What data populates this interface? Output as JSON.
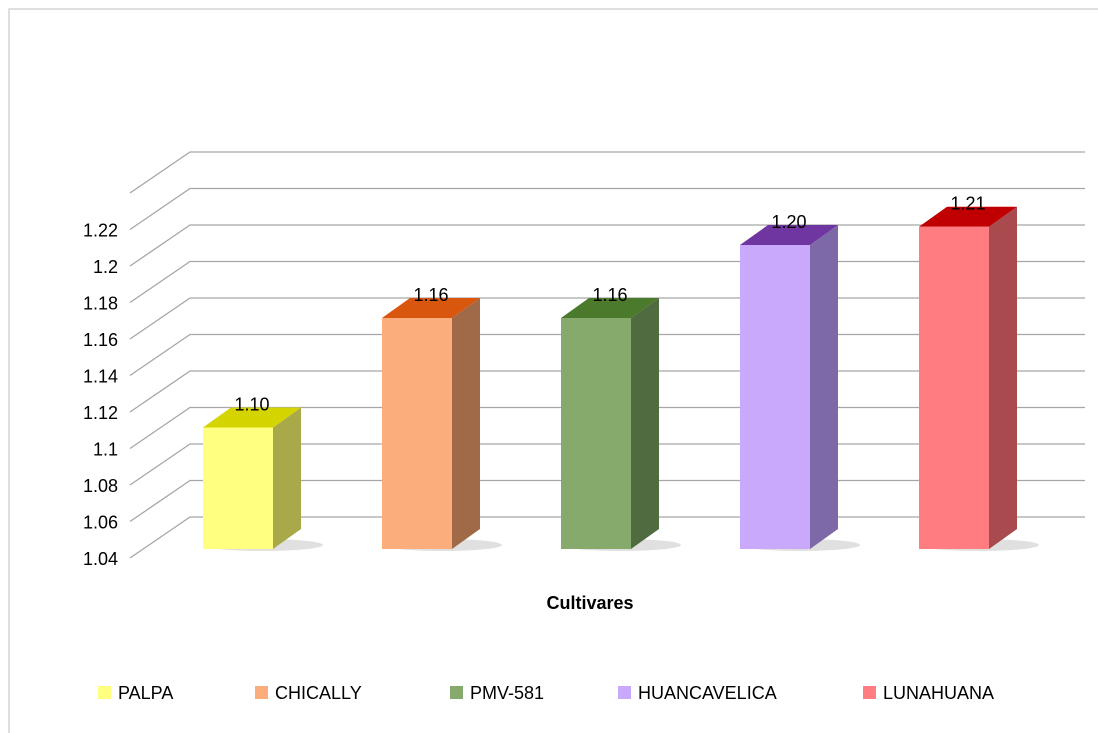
{
  "chart_data": {
    "type": "bar3d",
    "x_label": "Cultivares",
    "series": [
      {
        "name": "PALPA",
        "color": "#ffff80",
        "top_color": "#d4d400",
        "side_color": "#a9a94a",
        "values": [
          1.1
        ],
        "value_labels": [
          "1.10"
        ]
      },
      {
        "name": "CHICALLY",
        "color": "#fbad7b",
        "top_color": "#d9560f",
        "side_color": "#a06a48",
        "values": [
          1.16
        ],
        "value_labels": [
          "1.16"
        ]
      },
      {
        "name": "PMV-581",
        "color": "#86aa6b",
        "top_color": "#4c7a2c",
        "side_color": "#506b3f",
        "values": [
          1.16
        ],
        "value_labels": [
          "1.16"
        ]
      },
      {
        "name": "HUANCAVELICA",
        "color": "#c8a9fc",
        "top_color": "#6f35a0",
        "side_color": "#7d68a8",
        "values": [
          1.2
        ],
        "value_labels": [
          "1.20"
        ]
      },
      {
        "name": "LUNAHUANA",
        "color": "#ff7c80",
        "top_color": "#c00000",
        "side_color": "#a94a4e",
        "values": [
          1.21
        ],
        "value_labels": [
          "1.21"
        ]
      }
    ],
    "ylim": [
      1.04,
      1.24
    ],
    "yticks": [
      1.04,
      1.06,
      1.08,
      1.1,
      1.12,
      1.14,
      1.16,
      1.18,
      1.2,
      1.22
    ],
    "grid": true,
    "legend": "bottom"
  }
}
